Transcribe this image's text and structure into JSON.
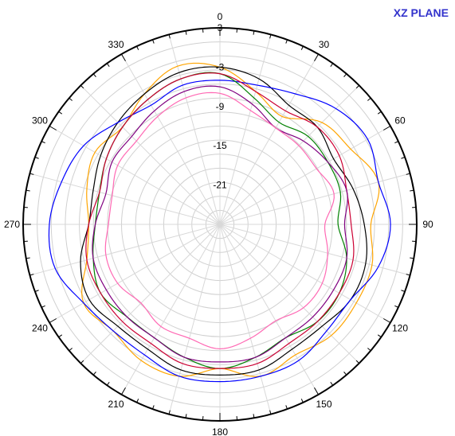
{
  "chart_data": {
    "type": "polar-line",
    "title": "XZ PLANE",
    "angle_ticks": [
      "0",
      "30",
      "60",
      "90",
      "120",
      "150",
      "180",
      "210",
      "240",
      "270",
      "300",
      "330"
    ],
    "radial_ticks": [
      "3",
      "-3",
      "-9",
      "-15",
      "-21"
    ],
    "radial_range_dB": [
      -27,
      3
    ],
    "grid": true,
    "series_colors": [
      "#ffa500",
      "#000000",
      "#0000ff",
      "#008000",
      "#cc0033",
      "#800080",
      "#ff69b4"
    ],
    "series": [
      {
        "color": "#ffa500",
        "angles_deg": [
          0,
          15,
          30,
          45,
          60,
          75,
          90,
          105,
          120,
          135,
          150,
          165,
          180,
          195,
          210,
          225,
          240,
          255,
          270,
          285,
          300,
          315,
          330,
          345
        ],
        "gain_dB": [
          -3,
          -6,
          -8,
          -5,
          -4,
          -2,
          -4,
          -3,
          -3,
          -3,
          -4,
          -3,
          -5,
          -3,
          -3,
          -4,
          -3,
          -6,
          -7,
          -6,
          -5,
          -6,
          -4,
          -2
        ]
      },
      {
        "color": "#000000",
        "angles_deg": [
          0,
          15,
          30,
          45,
          60,
          75,
          90,
          105,
          120,
          135,
          150,
          165,
          180,
          195,
          210,
          225,
          240,
          255,
          270,
          285,
          300,
          315,
          330,
          345
        ],
        "gain_dB": [
          -3,
          -4,
          -6,
          -6,
          -7,
          -6,
          -5,
          -4,
          -4,
          -5,
          -5,
          -4,
          -4,
          -4,
          -5,
          -5,
          -4,
          -5,
          -7,
          -7,
          -6,
          -5,
          -4,
          -3
        ]
      },
      {
        "color": "#0000ff",
        "angles_deg": [
          0,
          15,
          30,
          45,
          60,
          75,
          90,
          105,
          120,
          135,
          150,
          165,
          180,
          195,
          210,
          225,
          240,
          255,
          270,
          285,
          300,
          315,
          330,
          345
        ],
        "gain_dB": [
          -5,
          -5,
          -4,
          -2,
          -1,
          -2,
          -1,
          -2,
          -4,
          -4,
          -3,
          -3,
          -3,
          -3,
          -4,
          -4,
          -3,
          -1,
          -1,
          -2,
          -3,
          -5,
          -6,
          -5
        ]
      },
      {
        "color": "#008000",
        "angles_deg": [
          0,
          15,
          30,
          45,
          60,
          75,
          90,
          105,
          120,
          135,
          150,
          165,
          180,
          195,
          210,
          225,
          240,
          255,
          270,
          285,
          300,
          315,
          330,
          345
        ],
        "gain_dB": [
          -4,
          -7,
          -9,
          -8,
          -8,
          -8,
          -9,
          -7,
          -6,
          -6,
          -7,
          -6,
          -5,
          -6,
          -7,
          -7,
          -6,
          -7,
          -8,
          -8,
          -7,
          -6,
          -5,
          -4
        ]
      },
      {
        "color": "#cc0033",
        "angles_deg": [
          0,
          15,
          30,
          45,
          60,
          75,
          90,
          105,
          120,
          135,
          150,
          165,
          180,
          195,
          210,
          225,
          240,
          255,
          270,
          285,
          300,
          315,
          330,
          345
        ],
        "gain_dB": [
          -4,
          -6,
          -7,
          -6,
          -6,
          -7,
          -7,
          -6,
          -6,
          -6,
          -6,
          -5,
          -5,
          -5,
          -6,
          -6,
          -6,
          -6,
          -7,
          -8,
          -7,
          -6,
          -5,
          -4
        ]
      },
      {
        "color": "#800080",
        "angles_deg": [
          0,
          15,
          30,
          45,
          60,
          75,
          90,
          105,
          120,
          135,
          150,
          165,
          180,
          195,
          210,
          225,
          240,
          255,
          270,
          285,
          300,
          315,
          330,
          345
        ],
        "gain_dB": [
          -6,
          -8,
          -10,
          -9,
          -8,
          -7,
          -8,
          -7,
          -7,
          -7,
          -7,
          -6,
          -6,
          -6,
          -7,
          -7,
          -7,
          -7,
          -8,
          -9,
          -8,
          -8,
          -7,
          -6
        ]
      },
      {
        "color": "#ff69b4",
        "angles_deg": [
          0,
          15,
          30,
          45,
          60,
          75,
          90,
          105,
          120,
          135,
          150,
          165,
          180,
          195,
          210,
          225,
          240,
          255,
          270,
          285,
          300,
          315,
          330,
          345
        ],
        "gain_dB": [
          -7,
          -9,
          -10,
          -10,
          -10,
          -9,
          -11,
          -10,
          -9,
          -9,
          -10,
          -9,
          -8,
          -9,
          -9,
          -10,
          -9,
          -9,
          -10,
          -10,
          -9,
          -9,
          -8,
          -7
        ]
      }
    ]
  }
}
